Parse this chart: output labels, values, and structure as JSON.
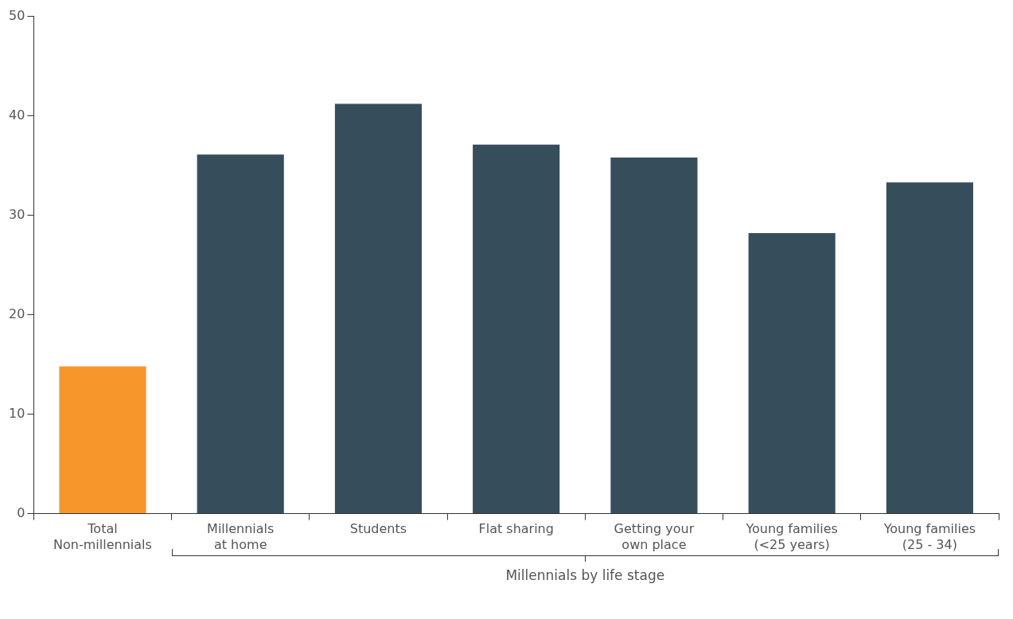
{
  "chart_data": {
    "type": "bar",
    "categories": [
      "Total\nNon-millennials",
      "Millennials\nat home",
      "Students",
      "Flat sharing",
      "Getting your\nown place",
      "Young families\n(<25 years)",
      "Young families\n(25 - 34)"
    ],
    "values": [
      14.8,
      36.1,
      41.2,
      37.1,
      35.8,
      28.2,
      33.3
    ],
    "colors": [
      "#f7962a",
      "#364e5c",
      "#364e5c",
      "#364e5c",
      "#364e5c",
      "#364e5c",
      "#364e5c"
    ],
    "ylim": [
      0,
      50
    ],
    "yticks": [
      0,
      10,
      20,
      30,
      40,
      50
    ],
    "grid": false,
    "legend": false,
    "annotations": [
      "Millennials by life stage"
    ]
  }
}
